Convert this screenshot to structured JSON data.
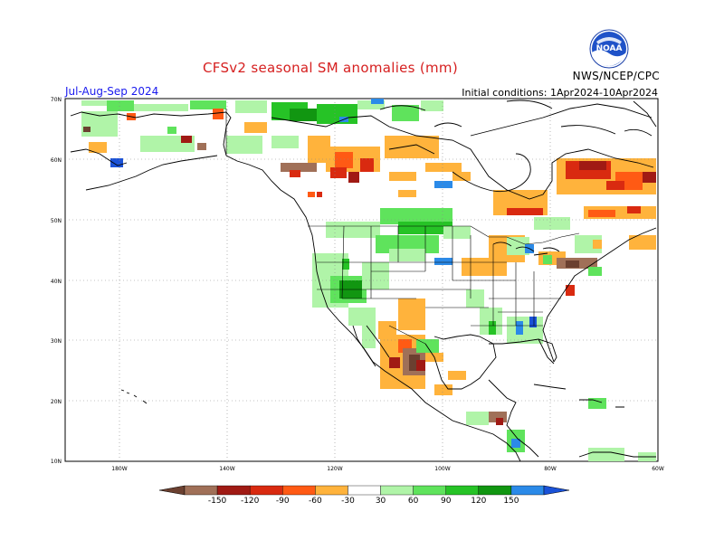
{
  "header": {
    "title": "CFSv2 seasonal SM anomalies (mm)",
    "period": "Jul-Aug-Sep 2024",
    "initial_conditions": "Initial conditions: 1Apr2024-10Apr2024",
    "agency": "NWS/NCEP/CPC",
    "logo_text": "NOAA"
  },
  "colors": {
    "title": "#d62020",
    "period": "#1a1aee",
    "land_outline": "#000000",
    "grid": "#888888"
  },
  "axes": {
    "lat_labels": [
      "70N",
      "60N",
      "50N",
      "40N",
      "30N",
      "20N",
      "10N"
    ],
    "lon_labels": [
      "180W",
      "140W",
      "120W",
      "100W",
      "80W",
      "60W"
    ]
  },
  "legend": {
    "bins": [
      {
        "color": "#6b4030"
      },
      {
        "color": "#a07058"
      },
      {
        "color": "#a01a14"
      },
      {
        "color": "#d92a10"
      },
      {
        "color": "#ff5a14"
      },
      {
        "color": "#ffb33c"
      },
      {
        "color": "#ffffff"
      },
      {
        "color": "#b0f4a8"
      },
      {
        "color": "#5fe35c"
      },
      {
        "color": "#26c326"
      },
      {
        "color": "#119611"
      },
      {
        "color": "#2b8ae8"
      },
      {
        "color": "#1a52d8"
      }
    ],
    "tick_labels": [
      "-150",
      "-120",
      "-90",
      "-60",
      "-30",
      "30",
      "60",
      "90",
      "120",
      "150"
    ]
  }
}
